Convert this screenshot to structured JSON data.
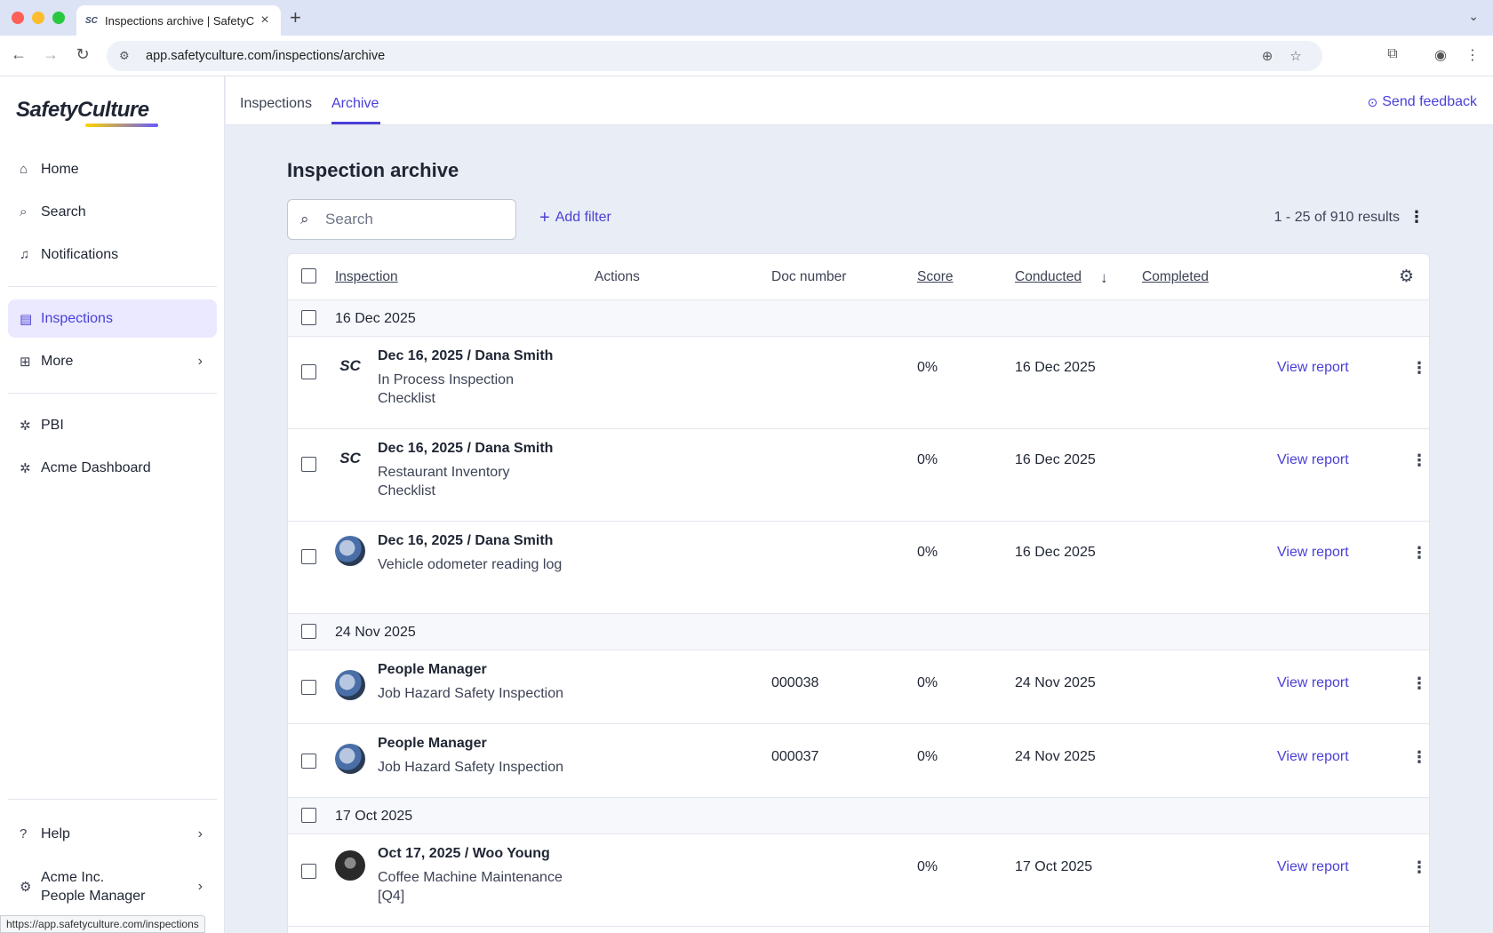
{
  "browser": {
    "tab_title": "Inspections archive | SafetyC",
    "favicon": "SC",
    "url": "app.safetyculture.com/inspections/archive",
    "status_url": "https://app.safetyculture.com/inspections"
  },
  "sidebar": {
    "logo": "SafetyCulture",
    "items": [
      {
        "label": "Home",
        "icon": "home-icon"
      },
      {
        "label": "Search",
        "icon": "search-icon"
      },
      {
        "label": "Notifications",
        "icon": "bell-icon"
      },
      {
        "label": "Inspections",
        "icon": "clipboard-icon",
        "active": true
      },
      {
        "label": "More",
        "icon": "grid-icon"
      },
      {
        "label": "PBI",
        "icon": "puzzle-icon"
      },
      {
        "label": "Acme Dashboard",
        "icon": "puzzle-icon"
      },
      {
        "label": "Help",
        "icon": "help-icon"
      }
    ],
    "org": {
      "name": "Acme Inc.",
      "role": "People Manager"
    }
  },
  "topnav": {
    "tabs": [
      "Inspections",
      "Archive"
    ],
    "active_tab": "Archive",
    "feedback_label": "Send feedback"
  },
  "main": {
    "title": "Inspection archive",
    "search_placeholder": "Search",
    "add_filter_label": "Add filter",
    "results_label": "1 - 25 of 910 results"
  },
  "table": {
    "columns": [
      "Inspection",
      "Actions",
      "Doc number",
      "Score",
      "Conducted",
      "Completed"
    ],
    "sort_column": "Conducted",
    "view_report_label": "View report",
    "groups": [
      {
        "date": "16 Dec 2025",
        "rows": [
          {
            "title": "Dec 16, 2025 / Dana Smith",
            "subtitle": "In Process Inspection Checklist",
            "doc": "",
            "score": "0%",
            "conducted": "16 Dec 2025",
            "avatar": "sc-logo"
          },
          {
            "title": "Dec 16, 2025 / Dana Smith",
            "subtitle": "Restaurant Inventory Checklist",
            "doc": "",
            "score": "0%",
            "conducted": "16 Dec 2025",
            "avatar": "sc-logo"
          },
          {
            "title": "Dec 16, 2025 / Dana Smith",
            "subtitle": "Vehicle odometer reading log",
            "doc": "",
            "score": "0%",
            "conducted": "16 Dec 2025",
            "avatar": "photo"
          }
        ]
      },
      {
        "date": "24 Nov 2025",
        "rows": [
          {
            "title": "People Manager",
            "subtitle": "Job Hazard Safety Inspection",
            "doc": "000038",
            "score": "0%",
            "conducted": "24 Nov 2025",
            "avatar": "photo"
          },
          {
            "title": "People Manager",
            "subtitle": "Job Hazard Safety Inspection",
            "doc": "000037",
            "score": "0%",
            "conducted": "24 Nov 2025",
            "avatar": "photo"
          }
        ]
      },
      {
        "date": "17 Oct 2025",
        "rows": [
          {
            "title": "Oct 17, 2025 / Woo Young",
            "subtitle": "Coffee Machine Maintenance [Q4]",
            "doc": "",
            "score": "0%",
            "conducted": "17 Oct 2025",
            "avatar": "dark-photo"
          }
        ]
      }
    ]
  }
}
